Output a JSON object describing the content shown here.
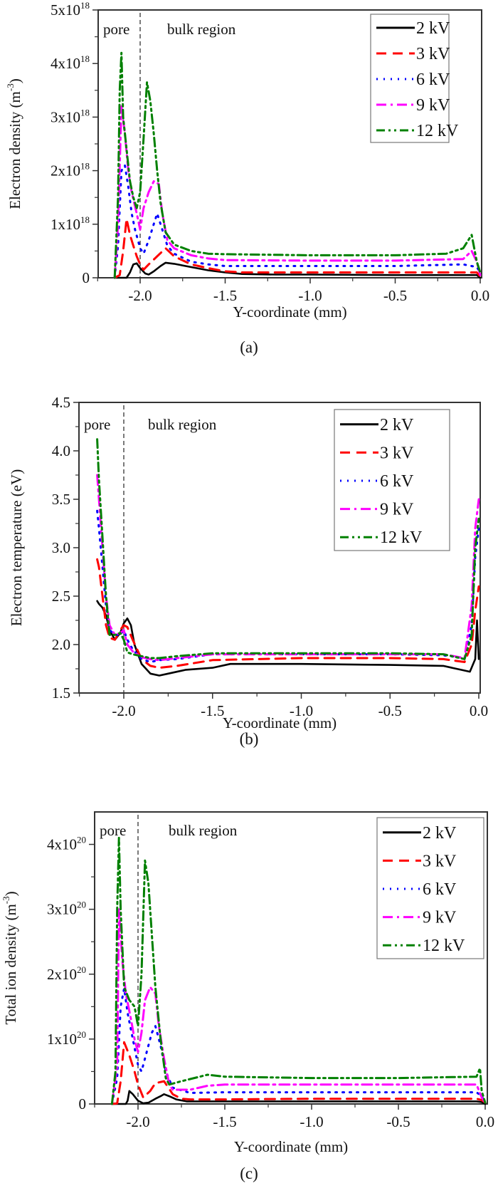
{
  "chart_data": [
    {
      "id": "a",
      "type": "line",
      "panel_label": "(a)",
      "title": "",
      "xlabel": "Y-coordinate (mm)",
      "ylabel": "Electron density (m",
      "ylabel_sup": "-3",
      "ylabel_end": ")",
      "xlim": [
        -2.25,
        0.0
      ],
      "ylim": [
        0,
        5e+18
      ],
      "grid": false,
      "legend_position": "top-right",
      "x_ticks": [
        -2.0,
        -1.5,
        -1.0,
        -0.5,
        0.0
      ],
      "x_tick_labels": [
        "-2.0",
        "-1.5",
        "-1.0",
        "-0.5",
        "0.0"
      ],
      "y_ticks": [
        0,
        1e+18,
        2e+18,
        3e+18,
        4e+18,
        5e+18
      ],
      "y_tick_labels": [
        {
          "base": "0",
          "exp": ""
        },
        {
          "base": "1x10",
          "exp": "18"
        },
        {
          "base": "2x10",
          "exp": "18"
        },
        {
          "base": "3x10",
          "exp": "18"
        },
        {
          "base": "4x10",
          "exp": "18"
        },
        {
          "base": "5x10",
          "exp": "18"
        }
      ],
      "annotations": {
        "pore": "pore",
        "bulk": "bulk region",
        "boundary_x": -2.0
      },
      "series": [
        {
          "name": "2 kV",
          "color": "#000000",
          "style": "solid",
          "x": [
            -2.15,
            -2.08,
            -2.06,
            -2.04,
            -2.02,
            -2.0,
            -1.97,
            -1.95,
            -1.92,
            -1.88,
            -1.85,
            -1.8,
            -1.7,
            -1.6,
            -1.5,
            -1.4,
            -1.2,
            -1.0,
            -0.5,
            -0.1,
            -0.02,
            0.0
          ],
          "y": [
            0,
            0,
            1e+17,
            2.5e+17,
            2.7e+17,
            1.8e+17,
            8e+16,
            6e+16,
            1.2e+17,
            2.2e+17,
            2.8e+17,
            2.6e+17,
            2e+17,
            1.4e+17,
            1e+17,
            7e+16,
            6e+16,
            6e+16,
            5e+16,
            5e+16,
            5e+16,
            0.0
          ]
        },
        {
          "name": "3 kV",
          "color": "#ff0000",
          "style": "dashed",
          "x": [
            -2.15,
            -2.12,
            -2.1,
            -2.08,
            -2.06,
            -2.04,
            -2.02,
            -2.0,
            -1.98,
            -1.95,
            -1.9,
            -1.85,
            -1.8,
            -1.7,
            -1.6,
            -1.5,
            -1.4,
            -1.0,
            -0.5,
            -0.1,
            -0.02,
            0.0
          ],
          "y": [
            0,
            5e+16,
            5e+17,
            1.1e+18,
            8e+17,
            6e+17,
            4e+17,
            2.5e+17,
            1.5e+17,
            2.5e+17,
            4e+17,
            5.5e+17,
            4e+17,
            2.5e+17,
            1.8e+17,
            1.2e+17,
            1e+17,
            1e+17,
            1e+17,
            1e+17,
            1e+17,
            2e+16
          ]
        },
        {
          "name": "6 kV",
          "color": "#0000ff",
          "style": "dotted",
          "x": [
            -2.15,
            -2.13,
            -2.11,
            -2.09,
            -2.07,
            -2.05,
            -2.03,
            -2.0,
            -1.98,
            -1.95,
            -1.92,
            -1.9,
            -1.87,
            -1.84,
            -1.8,
            -1.7,
            -1.6,
            -1.5,
            -1.0,
            -0.5,
            -0.1,
            -0.02,
            0.0
          ],
          "y": [
            0,
            6e+17,
            2e+18,
            2.1e+18,
            1.7e+18,
            1.2e+18,
            9e+17,
            5.5e+17,
            4.5e+17,
            7e+17,
            1e+18,
            1.2e+18,
            9e+17,
            6e+17,
            4.5e+17,
            3e+17,
            2.5e+17,
            2.2e+17,
            2.2e+17,
            2.2e+17,
            2.5e+17,
            2e+17,
            1e+17
          ]
        },
        {
          "name": "9 kV",
          "color": "#ff00ff",
          "style": "dashdot",
          "x": [
            -2.15,
            -2.13,
            -2.11,
            -2.09,
            -2.07,
            -2.05,
            -2.02,
            -2.0,
            -1.98,
            -1.95,
            -1.92,
            -1.89,
            -1.87,
            -1.84,
            -1.8,
            -1.7,
            -1.6,
            -1.5,
            -1.0,
            -0.5,
            -0.1,
            -0.05,
            -0.02,
            0.0
          ],
          "y": [
            0,
            1e+18,
            3.2e+18,
            2.7e+18,
            2e+18,
            1.6e+18,
            1.2e+18,
            9e+17,
            1.3e+18,
            1.6e+18,
            1.8e+18,
            1.75e+18,
            1.2e+18,
            7e+17,
            5.5e+17,
            4.2e+17,
            3.6e+17,
            3.3e+17,
            3.2e+17,
            3.2e+17,
            3.5e+17,
            5e+17,
            3e+17,
            5e+16
          ]
        },
        {
          "name": "12 kV",
          "color": "#008000",
          "style": "dashdotdot",
          "x": [
            -2.15,
            -2.13,
            -2.12,
            -2.11,
            -2.1,
            -2.08,
            -2.06,
            -2.04,
            -2.02,
            -2.0,
            -1.98,
            -1.96,
            -1.94,
            -1.92,
            -1.9,
            -1.88,
            -1.85,
            -1.8,
            -1.7,
            -1.6,
            -1.5,
            -1.0,
            -0.5,
            -0.2,
            -0.1,
            -0.05,
            -0.02,
            0.0
          ],
          "y": [
            0,
            1.5e+18,
            3.5e+18,
            4.2e+18,
            3e+18,
            2.4e+18,
            1.8e+18,
            1.5e+18,
            1.3e+18,
            1.6e+18,
            2.6e+18,
            3.65e+18,
            3.3e+18,
            2.7e+18,
            2e+18,
            1.4e+18,
            8.5e+17,
            6.2e+17,
            5e+17,
            4.5e+17,
            4.4e+17,
            4.2e+17,
            4.2e+17,
            4.5e+17,
            5.5e+17,
            8e+17,
            3e+17,
            1e+17
          ]
        }
      ]
    },
    {
      "id": "b",
      "type": "line",
      "panel_label": "(b)",
      "title": "",
      "xlabel": "Y-coordinate (mm)",
      "ylabel": "Electron temperature (eV)",
      "ylabel_sup": "",
      "ylabel_end": "",
      "xlim": [
        -2.25,
        0.0
      ],
      "ylim": [
        1.5,
        4.5
      ],
      "grid": false,
      "legend_position": "top-right",
      "x_ticks": [
        -2.0,
        -1.5,
        -1.0,
        -0.5,
        0.0
      ],
      "x_tick_labels": [
        "-2.0",
        "-1.5",
        "-1.0",
        "-0.5",
        "0.0"
      ],
      "y_ticks": [
        1.5,
        2.0,
        2.5,
        3.0,
        3.5,
        4.0,
        4.5
      ],
      "y_tick_labels": [
        {
          "base": "1.5",
          "exp": ""
        },
        {
          "base": "2.0",
          "exp": ""
        },
        {
          "base": "2.5",
          "exp": ""
        },
        {
          "base": "3.0",
          "exp": ""
        },
        {
          "base": "3.5",
          "exp": ""
        },
        {
          "base": "4.0",
          "exp": ""
        },
        {
          "base": "4.5",
          "exp": ""
        }
      ],
      "annotations": {
        "pore": "pore",
        "bulk": "bulk region",
        "boundary_x": -2.0
      },
      "series": [
        {
          "name": "2 kV",
          "color": "#000000",
          "style": "solid",
          "x": [
            -2.15,
            -2.14,
            -2.12,
            -2.1,
            -2.08,
            -2.05,
            -2.02,
            -2.0,
            -1.98,
            -1.96,
            -1.94,
            -1.9,
            -1.85,
            -1.8,
            -1.75,
            -1.65,
            -1.5,
            -1.4,
            -1.0,
            -0.5,
            -0.2,
            -0.1,
            -0.05,
            -0.02,
            -0.01,
            0.0
          ],
          "y": [
            2.45,
            2.42,
            2.38,
            2.3,
            2.15,
            2.05,
            2.12,
            2.22,
            2.27,
            2.2,
            2.0,
            1.8,
            1.7,
            1.68,
            1.7,
            1.74,
            1.76,
            1.8,
            1.8,
            1.79,
            1.78,
            1.74,
            1.72,
            1.85,
            2.25,
            1.85
          ]
        },
        {
          "name": "3 kV",
          "color": "#ff0000",
          "style": "dashed",
          "x": [
            -2.15,
            -2.14,
            -2.12,
            -2.1,
            -2.08,
            -2.05,
            -2.02,
            -2.0,
            -1.98,
            -1.95,
            -1.9,
            -1.85,
            -1.8,
            -1.7,
            -1.5,
            -1.0,
            -0.5,
            -0.2,
            -0.08,
            -0.04,
            -0.02,
            0.0
          ],
          "y": [
            2.88,
            2.8,
            2.5,
            2.2,
            2.07,
            2.05,
            2.15,
            2.2,
            2.18,
            2.05,
            1.85,
            1.78,
            1.76,
            1.78,
            1.84,
            1.86,
            1.86,
            1.85,
            1.82,
            2.0,
            2.35,
            2.6
          ]
        },
        {
          "name": "6 kV",
          "color": "#0000ff",
          "style": "dotted",
          "x": [
            -2.15,
            -2.14,
            -2.12,
            -2.1,
            -2.08,
            -2.05,
            -2.02,
            -2.0,
            -1.98,
            -1.95,
            -1.9,
            -1.85,
            -1.8,
            -1.7,
            -1.5,
            -1.0,
            -0.5,
            -0.2,
            -0.08,
            -0.04,
            -0.02,
            0.0
          ],
          "y": [
            3.38,
            3.2,
            2.8,
            2.4,
            2.15,
            2.1,
            2.1,
            2.15,
            2.05,
            1.95,
            1.85,
            1.82,
            1.84,
            1.85,
            1.9,
            1.9,
            1.9,
            1.89,
            1.86,
            2.2,
            2.9,
            3.2
          ]
        },
        {
          "name": "9 kV",
          "color": "#ff00ff",
          "style": "dashdot",
          "x": [
            -2.15,
            -2.14,
            -2.12,
            -2.1,
            -2.08,
            -2.05,
            -2.02,
            -2.0,
            -1.98,
            -1.95,
            -1.9,
            -1.85,
            -1.8,
            -1.7,
            -1.5,
            -1.0,
            -0.5,
            -0.2,
            -0.08,
            -0.04,
            -0.02,
            0.0
          ],
          "y": [
            3.75,
            3.5,
            3.0,
            2.5,
            2.2,
            2.1,
            2.12,
            2.15,
            2.0,
            1.93,
            1.87,
            1.85,
            1.84,
            1.86,
            1.9,
            1.9,
            1.9,
            1.9,
            1.86,
            2.4,
            3.2,
            3.5
          ]
        },
        {
          "name": "12 kV",
          "color": "#008000",
          "style": "dashdotdot",
          "x": [
            -2.15,
            -2.14,
            -2.12,
            -2.1,
            -2.08,
            -2.05,
            -2.02,
            -2.0,
            -1.98,
            -1.95,
            -1.9,
            -1.85,
            -1.8,
            -1.7,
            -1.5,
            -1.0,
            -0.5,
            -0.2,
            -0.08,
            -0.04,
            -0.02,
            0.0
          ],
          "y": [
            4.12,
            3.7,
            3.1,
            2.5,
            2.1,
            2.1,
            2.12,
            2.05,
            1.92,
            1.9,
            1.88,
            1.86,
            1.86,
            1.88,
            1.91,
            1.91,
            1.91,
            1.9,
            1.85,
            2.1,
            3.0,
            3.3
          ]
        }
      ]
    },
    {
      "id": "c",
      "type": "line",
      "panel_label": "(c)",
      "title": "",
      "xlabel": "Y-coordinate (mm)",
      "ylabel": "Total ion density (m",
      "ylabel_sup": "-3",
      "ylabel_end": ")",
      "xlim": [
        -2.25,
        0.0
      ],
      "ylim": [
        0,
        4.5e+20
      ],
      "grid": false,
      "legend_position": "top-right",
      "x_ticks": [
        -2.0,
        -1.5,
        -1.0,
        -0.5,
        0.0
      ],
      "x_tick_labels": [
        "-2.0",
        "-1.5",
        "-1.0",
        "-0.5",
        "0.0"
      ],
      "y_ticks": [
        0,
        1e+20,
        2e+20,
        3e+20,
        4e+20
      ],
      "y_tick_labels": [
        {
          "base": "0",
          "exp": ""
        },
        {
          "base": "1x10",
          "exp": "20"
        },
        {
          "base": "2x10",
          "exp": "20"
        },
        {
          "base": "3x10",
          "exp": "20"
        },
        {
          "base": "4x10",
          "exp": "20"
        }
      ],
      "annotations": {
        "pore": "pore",
        "bulk": "bulk region",
        "boundary_x": -2.0
      },
      "series": [
        {
          "name": "2 kV",
          "color": "#000000",
          "style": "solid",
          "x": [
            -2.15,
            -2.07,
            -2.06,
            -2.05,
            -2.03,
            -2.0,
            -1.97,
            -1.94,
            -1.9,
            -1.87,
            -1.85,
            -1.82,
            -1.78,
            -1.72,
            -1.5,
            -1.0,
            -0.5,
            -0.05,
            -0.02,
            0.0
          ],
          "y": [
            0,
            0,
            5e+18,
            2e+19,
            1.5e+19,
            5e+18,
            1e+18,
            2e+18,
            8e+18,
            1.2e+19,
            1.5e+19,
            1.2e+19,
            7e+18,
            4e+18,
            4e+18,
            4e+18,
            4e+18,
            4e+18,
            3e+18,
            0.0
          ]
        },
        {
          "name": "3 kV",
          "color": "#ff0000",
          "style": "dashed",
          "x": [
            -2.15,
            -2.12,
            -2.1,
            -2.08,
            -2.05,
            -2.02,
            -2.0,
            -1.97,
            -1.93,
            -1.9,
            -1.85,
            -1.8,
            -1.75,
            -1.7,
            -1.5,
            -1.0,
            -0.5,
            -0.05,
            -0.02,
            0.0
          ],
          "y": [
            0,
            1e+18,
            3.5e+19,
            9.5e+19,
            7.5e+19,
            5e+19,
            3e+19,
            1e+19,
            2e+19,
            3.2e+19,
            3.5e+19,
            1.5e+19,
            8e+18,
            7e+18,
            7e+18,
            8e+18,
            8e+18,
            8e+18,
            6e+18,
            2e+18
          ]
        },
        {
          "name": "6 kV",
          "color": "#0000ff",
          "style": "dotted",
          "x": [
            -2.15,
            -2.12,
            -2.1,
            -2.08,
            -2.06,
            -2.03,
            -2.0,
            -1.98,
            -1.95,
            -1.92,
            -1.9,
            -1.87,
            -1.84,
            -1.8,
            -1.7,
            -1.5,
            -1.0,
            -0.5,
            -0.05,
            -0.02,
            0.0
          ],
          "y": [
            0,
            4e+19,
            1.5e+20,
            1.78e+20,
            1.4e+20,
            1e+20,
            6e+19,
            5e+19,
            8e+19,
            1.1e+20,
            1.2e+20,
            9e+19,
            5e+19,
            2.5e+19,
            1.7e+19,
            1.8e+19,
            1.8e+19,
            1.8e+19,
            1.8e+19,
            1.2e+19,
            2e+18
          ]
        },
        {
          "name": "9 kV",
          "color": "#ff00ff",
          "style": "dashdot",
          "x": [
            -2.15,
            -2.12,
            -2.11,
            -2.09,
            -2.07,
            -2.04,
            -2.02,
            -2.0,
            -1.98,
            -1.96,
            -1.93,
            -1.9,
            -1.88,
            -1.85,
            -1.82,
            -1.8,
            -1.7,
            -1.6,
            -1.5,
            -1.0,
            -0.5,
            -0.05,
            -0.02,
            0.0
          ],
          "y": [
            0,
            6e+19,
            3e+20,
            2.2e+20,
            1.7e+20,
            1.3e+20,
            1e+20,
            8e+19,
            1.1e+20,
            1.6e+20,
            1.8e+20,
            1.7e+20,
            1.2e+20,
            7e+19,
            3e+19,
            2.2e+19,
            2.2e+19,
            2.8e+19,
            3e+19,
            3e+19,
            3e+19,
            3e+19,
            1e+19,
            2e+18
          ]
        },
        {
          "name": "12 kV",
          "color": "#008000",
          "style": "dashdotdot",
          "x": [
            -2.15,
            -2.13,
            -2.12,
            -2.11,
            -2.1,
            -2.08,
            -2.05,
            -2.02,
            -2.0,
            -1.98,
            -1.96,
            -1.94,
            -1.92,
            -1.9,
            -1.87,
            -1.84,
            -1.82,
            -1.75,
            -1.6,
            -1.5,
            -1.0,
            -0.5,
            -0.05,
            -0.03,
            -0.02,
            0.0
          ],
          "y": [
            0,
            5e+19,
            3e+20,
            4.1e+20,
            3e+20,
            1.8e+20,
            1.6e+20,
            1.5e+20,
            1.2e+20,
            2e+20,
            3.75e+20,
            3.4e+20,
            2.6e+20,
            1.8e+20,
            1e+20,
            4e+19,
            3e+19,
            3.5e+19,
            4.5e+19,
            4.2e+19,
            4e+19,
            4e+19,
            4.2e+19,
            5.5e+19,
            2e+19,
            2e+18
          ]
        }
      ]
    }
  ]
}
